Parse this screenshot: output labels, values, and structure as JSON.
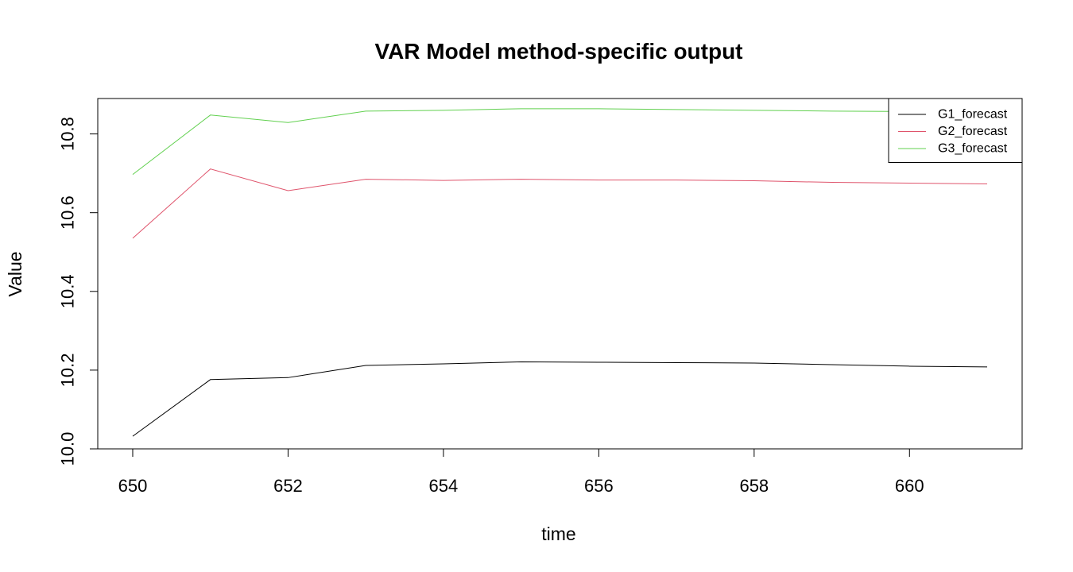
{
  "chart_data": {
    "type": "line",
    "title": "VAR Model method-specific output",
    "xlabel": "time",
    "ylabel": "Value",
    "x": [
      650,
      651,
      652,
      653,
      654,
      655,
      656,
      657,
      658,
      659,
      660,
      661
    ],
    "xlim": [
      649.55,
      661.45
    ],
    "ylim": [
      10.0,
      10.89
    ],
    "xticks": [
      650,
      652,
      654,
      656,
      658,
      660
    ],
    "yticks": [
      10.0,
      10.2,
      10.4,
      10.6,
      10.8
    ],
    "xtick_labels": [
      "650",
      "652",
      "654",
      "656",
      "658",
      "660"
    ],
    "ytick_labels": [
      "10.0",
      "10.2",
      "10.4",
      "10.6",
      "10.8"
    ],
    "grid": false,
    "legend_position": "top-right",
    "series": [
      {
        "name": "G1_forecast",
        "color": "#000000",
        "values": [
          10.032,
          10.176,
          10.181,
          10.212,
          10.216,
          10.221,
          10.22,
          10.219,
          10.218,
          10.214,
          10.21,
          10.208
        ]
      },
      {
        "name": "G2_forecast",
        "color": "#DF536B",
        "values": [
          10.535,
          10.711,
          10.656,
          10.685,
          10.682,
          10.685,
          10.683,
          10.683,
          10.681,
          10.677,
          10.675,
          10.673
        ]
      },
      {
        "name": "G3_forecast",
        "color": "#61D04F",
        "values": [
          10.697,
          10.848,
          10.829,
          10.858,
          10.86,
          10.864,
          10.864,
          10.862,
          10.86,
          10.858,
          10.857,
          10.856
        ]
      }
    ]
  }
}
